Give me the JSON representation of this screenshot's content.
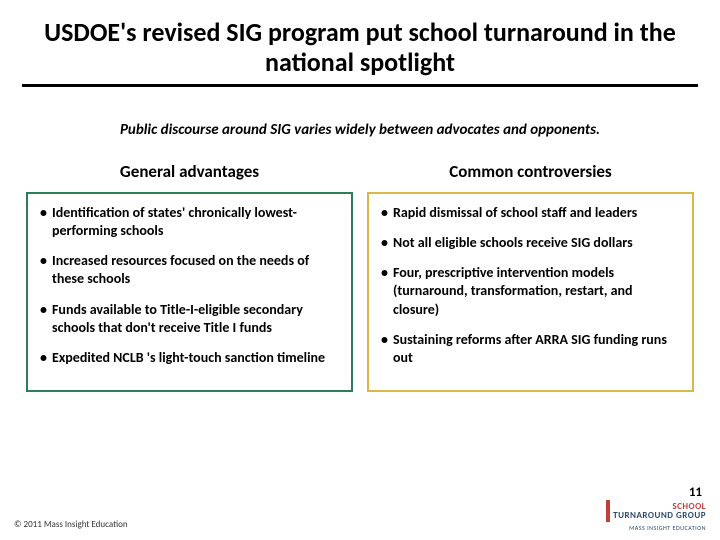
{
  "title": "USDOE's revised SIG program put school turnaround in the national spotlight",
  "subtitle": "Public discourse around SIG varies widely between advocates and opponents.",
  "columns": {
    "left": {
      "heading": "General advantages",
      "border_color": "#2e7d5a",
      "bullets": [
        "Identification of states' chronically lowest-performing schools",
        "Increased resources focused on the needs of these schools",
        "Funds available to Title-I-eligible secondary schools that don't receive Title I funds",
        "Expedited NCLB 's light-touch sanction timeline"
      ]
    },
    "right": {
      "heading": "Common controversies",
      "border_color": "#d9b84a",
      "bullets": [
        "Rapid dismissal of school staff and leaders",
        "Not all eligible schools receive SIG dollars",
        "Four, prescriptive intervention models (turnaround, transformation, restart, and closure)",
        "Sustaining reforms after ARRA SIG funding runs out"
      ]
    }
  },
  "page_number": "11",
  "footer": "© 2011 Mass Insight Education",
  "logo": {
    "line1": "SCHOOL",
    "line2": "TURNAROUND",
    "line3": "GROUP",
    "sub": "MASS INSIGHT EDUCATION",
    "bar_color": "#c43e3a"
  }
}
